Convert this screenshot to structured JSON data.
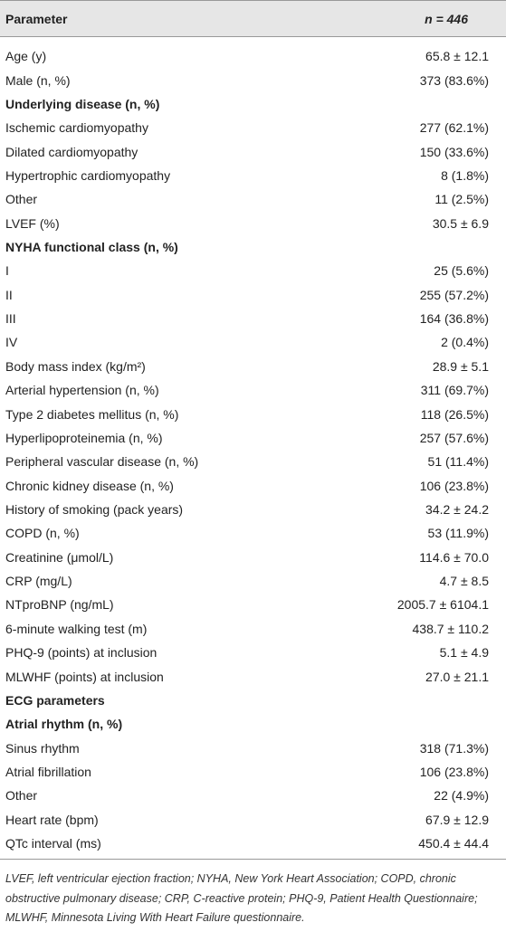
{
  "table": {
    "header": [
      "Parameter",
      "n = 446"
    ],
    "rows": [
      {
        "label": "Age (y)",
        "value": "65.8 ± 12.1"
      },
      {
        "label": "Male (n, %)",
        "value": "373 (83.6%)"
      },
      {
        "heading": "Underlying disease (n, %)"
      },
      {
        "label": "Ischemic cardiomyopathy",
        "value": "277 (62.1%)"
      },
      {
        "label": "Dilated cardiomyopathy",
        "value": "150 (33.6%)"
      },
      {
        "label": "Hypertrophic cardiomyopathy",
        "value": "8 (1.8%)"
      },
      {
        "label": "Other",
        "value": "11 (2.5%)"
      },
      {
        "label": "LVEF (%)",
        "value": "30.5 ± 6.9"
      },
      {
        "heading": "NYHA functional class (n, %)"
      },
      {
        "label": "I",
        "value": "25 (5.6%)"
      },
      {
        "label": "II",
        "value": "255 (57.2%)"
      },
      {
        "label": "III",
        "value": "164 (36.8%)"
      },
      {
        "label": "IV",
        "value": "2 (0.4%)"
      },
      {
        "label": "Body mass index (kg/m²)",
        "value": "28.9 ± 5.1"
      },
      {
        "label": "Arterial hypertension (n, %)",
        "value": "311 (69.7%)"
      },
      {
        "label": "Type 2 diabetes mellitus (n, %)",
        "value": "118 (26.5%)"
      },
      {
        "label": "Hyperlipoproteinemia (n, %)",
        "value": "257 (57.6%)"
      },
      {
        "label": "Peripheral vascular disease (n, %)",
        "value": "51 (11.4%)"
      },
      {
        "label": "Chronic kidney disease (n, %)",
        "value": "106 (23.8%)"
      },
      {
        "label": "History of smoking (pack years)",
        "value": "34.2 ± 24.2"
      },
      {
        "label": "COPD (n, %)",
        "value": "53 (11.9%)"
      },
      {
        "label": "Creatinine (μmol/L)",
        "value": "114.6 ± 70.0"
      },
      {
        "label": "CRP (mg/L)",
        "value": "4.7 ± 8.5"
      },
      {
        "label": "NTproBNP (ng/mL)",
        "value": "2005.7 ± 6104.1"
      },
      {
        "label": "6-minute walking test (m)",
        "value": "438.7 ± 110.2"
      },
      {
        "label": "PHQ-9 (points) at inclusion",
        "value": "5.1 ± 4.9"
      },
      {
        "label": "MLWHF (points) at inclusion",
        "value": "27.0 ± 21.1"
      },
      {
        "heading": "ECG parameters"
      },
      {
        "heading": "Atrial rhythm (n, %)"
      },
      {
        "label": "Sinus rhythm",
        "value": "318 (71.3%)"
      },
      {
        "label": "Atrial fibrillation",
        "value": "106 (23.8%)"
      },
      {
        "label": "Other",
        "value": "22 (4.9%)"
      },
      {
        "label": "Heart rate (bpm)",
        "value": "67.9 ± 12.9"
      },
      {
        "label": "QTc interval (ms)",
        "value": "450.4 ± 44.4"
      }
    ]
  },
  "footnote": "LVEF, left ventricular ejection fraction; NYHA, New York Heart Association; COPD, chronic obstructive pulmonary disease; CRP, C-reactive protein; PHQ-9, Patient Health Questionnaire; MLWHF, Minnesota Living With Heart Failure questionnaire."
}
